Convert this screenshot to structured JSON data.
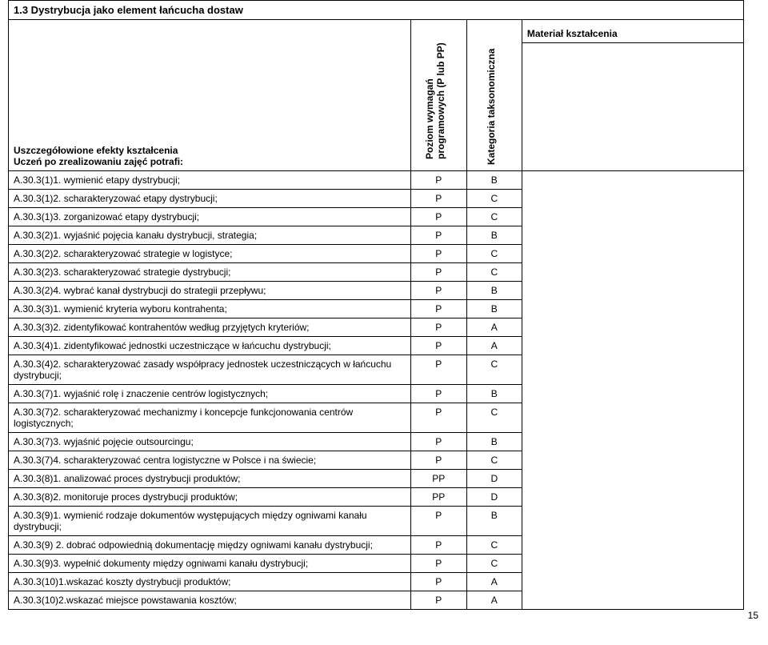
{
  "section": {
    "title": "1.3 Dystrybucja jako element łańcucha dostaw"
  },
  "headers": {
    "desc_line1": "Uszczegółowione efekty kształcenia",
    "desc_line2": "Uczeń po zrealizowaniu zajęć potrafi:",
    "poziom_line1": "Poziom wymagań",
    "poziom_line2": "programowych (P lub PP)",
    "kategoria": "Kategoria taksonomiczna",
    "material": "Materiał kształcenia"
  },
  "rows": [
    {
      "desc": "A.30.3(1)1. wymienić etapy dystrybucji;",
      "p": "P",
      "k": "B"
    },
    {
      "desc": "A.30.3(1)2. scharakteryzować etapy dystrybucji;",
      "p": "P",
      "k": "C"
    },
    {
      "desc": "A.30.3(1)3. zorganizować etapy dystrybucji;",
      "p": "P",
      "k": "C"
    },
    {
      "desc": "A.30.3(2)1. wyjaśnić pojęcia kanału dystrybucji, strategia;",
      "p": "P",
      "k": "B"
    },
    {
      "desc": "A.30.3(2)2. scharakteryzować strategie w logistyce;",
      "p": "P",
      "k": "C"
    },
    {
      "desc": "A.30.3(2)3. scharakteryzować strategie dystrybucji;",
      "p": "P",
      "k": "C"
    },
    {
      "desc": "A.30.3(2)4. wybrać kanał dystrybucji do strategii przepływu;",
      "p": "P",
      "k": "B"
    },
    {
      "desc": "A.30.3(3)1. wymienić kryteria wyboru kontrahenta;",
      "p": "P",
      "k": "B"
    },
    {
      "desc": "A.30.3(3)2. zidentyfikować kontrahentów według przyjętych kryteriów;",
      "p": "P",
      "k": "A"
    },
    {
      "desc": "A.30.3(4)1. zidentyfikować jednostki uczestniczące w łańcuchu dystrybucji;",
      "p": "P",
      "k": "A"
    },
    {
      "desc": "A.30.3(4)2. scharakteryzować zasady współpracy jednostek uczestniczących w łańcuchu dystrybucji;",
      "p": "P",
      "k": "C"
    },
    {
      "desc": "A.30.3(7)1. wyjaśnić rolę i znaczenie centrów logistycznych;",
      "p": "P",
      "k": "B"
    },
    {
      "desc": "A.30.3(7)2. scharakteryzować mechanizmy i koncepcje funkcjonowania centrów logistycznych;",
      "p": "P",
      "k": "C"
    },
    {
      "desc": "A.30.3(7)3. wyjaśnić pojęcie outsourcingu;",
      "p": "P",
      "k": "B"
    },
    {
      "desc": "A.30.3(7)4. scharakteryzować centra logistyczne w Polsce i na świecie;",
      "p": "P",
      "k": "C"
    },
    {
      "desc": "A.30.3(8)1. analizować proces dystrybucji produktów;",
      "p": "PP",
      "k": "D"
    },
    {
      "desc": "A.30.3(8)2. monitoruje proces dystrybucji produktów;",
      "p": "PP",
      "k": "D"
    },
    {
      "desc": "A.30.3(9)1. wymienić rodzaje dokumentów występujących między ogniwami kanału dystrybucji;",
      "p": "P",
      "k": "B"
    },
    {
      "desc": "A.30.3(9) 2. dobrać odpowiednią dokumentację między ogniwami kanału dystrybucji;",
      "p": "P",
      "k": "C"
    },
    {
      "desc": "A.30.3(9)3. wypełnić dokumenty między ogniwami kanału dystrybucji;",
      "p": "P",
      "k": "C"
    },
    {
      "desc": "A.30.3(10)1.wskazać koszty dystrybucji produktów;",
      "p": "P",
      "k": "A"
    },
    {
      "desc": "A.30.3(10)2.wskazać miejsce powstawania kosztów;",
      "p": "P",
      "k": "A"
    }
  ],
  "page_number": "15",
  "row_count": 22
}
